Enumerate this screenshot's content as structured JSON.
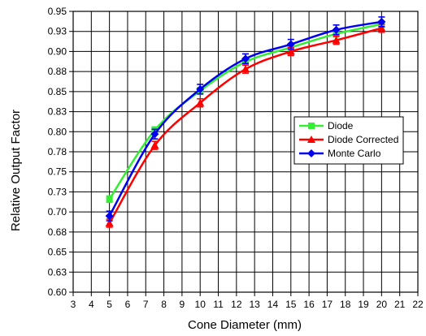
{
  "chart_data": {
    "type": "line",
    "title": "",
    "xlabel": "Cone Diameter (mm)",
    "ylabel": "Relative Output Factor",
    "xlim": [
      3,
      22
    ],
    "ylim": [
      0.6,
      0.95
    ],
    "x_ticks": [
      3,
      4,
      5,
      6,
      7,
      8,
      9,
      10,
      11,
      12,
      13,
      14,
      15,
      16,
      17,
      18,
      19,
      20,
      21,
      22
    ],
    "x_tick_labels": [
      "3",
      "4",
      "5",
      "6",
      "7",
      "8",
      "9",
      "10",
      "11",
      "12",
      "13",
      "14",
      "15",
      "16",
      "17",
      "18",
      "19",
      "20",
      "21",
      "22"
    ],
    "y_ticks": [
      0.6,
      0.625,
      0.65,
      0.675,
      0.7,
      0.725,
      0.75,
      0.775,
      0.8,
      0.825,
      0.85,
      0.875,
      0.9,
      0.925,
      0.95
    ],
    "y_tick_labels": [
      "0.60",
      "0.63",
      "0.65",
      "0.68",
      "0.70",
      "0.73",
      "0.75",
      "0.78",
      "0.80",
      "0.83",
      "0.85",
      "0.88",
      "0.90",
      "0.93",
      "0.95"
    ],
    "grid": true,
    "legend_position": "center-right",
    "x": [
      5,
      7.5,
      10,
      12.5,
      15,
      17.5,
      20
    ],
    "series": [
      {
        "name": "Diode",
        "color": "#33ee33",
        "marker": "square",
        "values": [
          0.716,
          0.802,
          0.851,
          0.887,
          0.905,
          0.922,
          0.934
        ],
        "errors": [
          0.004,
          0.004,
          0.004,
          0.004,
          0.004,
          0.004,
          0.004
        ]
      },
      {
        "name": "Diode Corrected",
        "color": "#ff0000",
        "marker": "triangle",
        "values": [
          0.686,
          0.783,
          0.836,
          0.878,
          0.9,
          0.914,
          0.929
        ],
        "errors": [
          0.005,
          0.005,
          0.005,
          0.005,
          0.005,
          0.005,
          0.005
        ]
      },
      {
        "name": "Monte Carlo",
        "color": "#0000ee",
        "marker": "diamond",
        "values": [
          0.695,
          0.797,
          0.853,
          0.891,
          0.909,
          0.927,
          0.937
        ],
        "errors": [
          0.006,
          0.006,
          0.006,
          0.006,
          0.006,
          0.006,
          0.006
        ]
      }
    ]
  }
}
